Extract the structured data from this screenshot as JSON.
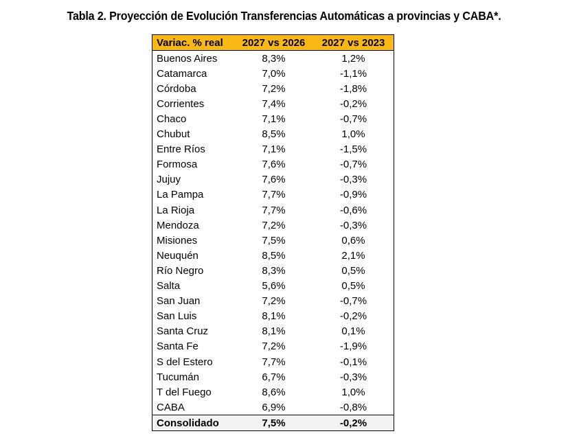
{
  "title": "Tabla 2. Proyección de Evolución Transferencias Automáticas a provincias y CABA*.",
  "table": {
    "headers": [
      "Variac. % real",
      "2027 vs 2026",
      "2027 vs 2023"
    ],
    "rows": [
      [
        "Buenos Aires",
        "8,3%",
        "1,2%"
      ],
      [
        "Catamarca",
        "7,0%",
        "-1,1%"
      ],
      [
        "Córdoba",
        "7,2%",
        "-1,8%"
      ],
      [
        "Corrientes",
        "7,4%",
        "-0,2%"
      ],
      [
        "Chaco",
        "7,1%",
        "-0,7%"
      ],
      [
        "Chubut",
        "8,5%",
        "1,0%"
      ],
      [
        "Entre Ríos",
        "7,1%",
        "-1,5%"
      ],
      [
        "Formosa",
        "7,6%",
        "-0,7%"
      ],
      [
        "Jujuy",
        "7,6%",
        "-0,3%"
      ],
      [
        "La Pampa",
        "7,7%",
        "-0,9%"
      ],
      [
        "La Rioja",
        "7,7%",
        "-0,6%"
      ],
      [
        "Mendoza",
        "7,2%",
        "-0,3%"
      ],
      [
        "Misiones",
        "7,5%",
        "0,6%"
      ],
      [
        "Neuquén",
        "8,5%",
        "2,1%"
      ],
      [
        "Río Negro",
        "8,3%",
        "0,5%"
      ],
      [
        "Salta",
        "5,6%",
        "0,5%"
      ],
      [
        "San Juan",
        "7,2%",
        "-0,7%"
      ],
      [
        "San Luis",
        "8,1%",
        "-0,2%"
      ],
      [
        "Santa Cruz",
        "8,1%",
        "0,1%"
      ],
      [
        "Santa Fe",
        "7,2%",
        "-1,9%"
      ],
      [
        "S del Estero",
        "7,7%",
        "-0,1%"
      ],
      [
        "Tucumán",
        "6,7%",
        "-0,3%"
      ],
      [
        "T del Fuego",
        "8,6%",
        "1,0%"
      ],
      [
        "CABA",
        "6,9%",
        "-0,8%"
      ]
    ],
    "total": [
      "Consolidado",
      "7,5%",
      "-0,2%"
    ]
  },
  "colors": {
    "header_bg": "#f9b814",
    "total_bg": "#f2f2f2"
  }
}
